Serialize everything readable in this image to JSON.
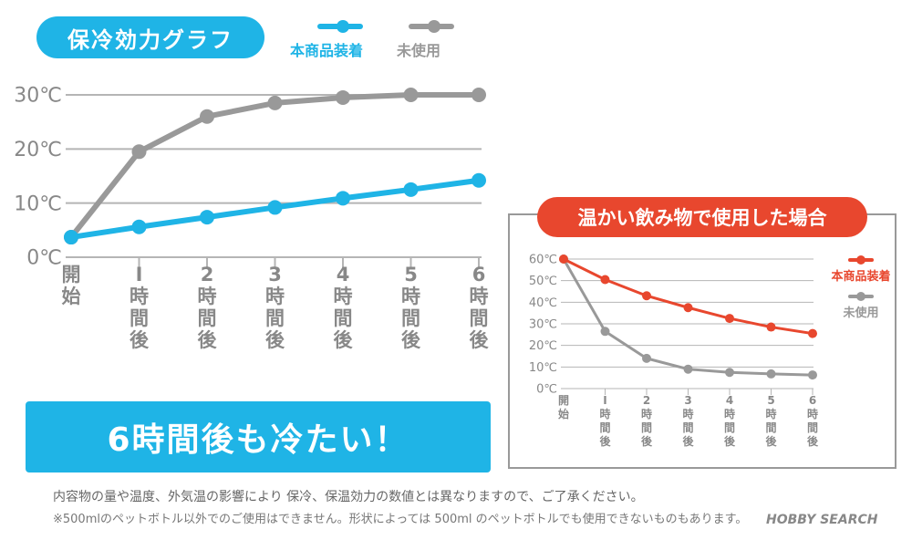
{
  "header": {
    "title": "保冷効力グラフ"
  },
  "legend_main": [
    {
      "label": "本商品装着",
      "color": "#1fb4e6"
    },
    {
      "label": "未使用",
      "color": "#999999"
    }
  ],
  "chart_data": [
    {
      "type": "line",
      "title": "保冷効力グラフ",
      "categories": [
        "開始",
        "1時間後",
        "2時間後",
        "3時間後",
        "4時間後",
        "5時間後",
        "6時間後"
      ],
      "category_labels": [
        [
          "開",
          "始"
        ],
        [
          "I",
          "時",
          "間",
          "後"
        ],
        [
          "2",
          "時",
          "間",
          "後"
        ],
        [
          "3",
          "時",
          "間",
          "後"
        ],
        [
          "4",
          "時",
          "間",
          "後"
        ],
        [
          "5",
          "時",
          "間",
          "後"
        ],
        [
          "6",
          "時",
          "間",
          "後"
        ]
      ],
      "y_ticks": [
        "0℃",
        "10℃",
        "20℃",
        "30℃"
      ],
      "ylim": [
        0,
        30
      ],
      "grid": true,
      "legend_position": "top",
      "series": [
        {
          "name": "本商品装着",
          "color": "#1fb4e6",
          "values": [
            3.7,
            5.6,
            7.4,
            9.2,
            10.9,
            12.5,
            14.2
          ]
        },
        {
          "name": "未使用",
          "color": "#999999",
          "values": [
            3.7,
            19.5,
            26.0,
            28.5,
            29.5,
            30.0,
            30.0
          ]
        }
      ]
    },
    {
      "type": "line",
      "title": "温かい飲み物で使用した場合",
      "categories": [
        "開始",
        "1時間後",
        "2時間後",
        "3時間後",
        "4時間後",
        "5時間後",
        "6時間後"
      ],
      "category_labels": [
        [
          "開",
          "始"
        ],
        [
          "I",
          "時",
          "間",
          "後"
        ],
        [
          "2",
          "時",
          "間",
          "後"
        ],
        [
          "3",
          "時",
          "間",
          "後"
        ],
        [
          "4",
          "時",
          "間",
          "後"
        ],
        [
          "5",
          "時",
          "間",
          "後"
        ],
        [
          "6",
          "時",
          "間",
          "後"
        ]
      ],
      "y_ticks": [
        "0℃",
        "10℃",
        "20℃",
        "30℃",
        "40℃",
        "50℃",
        "60℃"
      ],
      "ylim": [
        0,
        60
      ],
      "grid": true,
      "legend_position": "right",
      "series": [
        {
          "name": "本商品装着",
          "color": "#e8472e",
          "values": [
            60,
            50.5,
            43,
            37.5,
            32.5,
            28.5,
            25.5
          ]
        },
        {
          "name": "未使用",
          "color": "#999999",
          "values": [
            60,
            26.5,
            14,
            9,
            7.5,
            6.8,
            6.3
          ]
        }
      ]
    }
  ],
  "banner": {
    "text": "6時間後も冷たい！"
  },
  "inset": {
    "title": "温かい飲み物で使用した場合"
  },
  "notes": {
    "line1": "内容物の量や温度、外気温の影響により 保冷、保温効力の数値とは異なりますので、ご了承ください。",
    "line2": "※500mlのペットボトル以外でのご使用はできません。形状によっては 500ml のペットボトルでも使用できないものもあります。"
  },
  "watermark": "HOBBY SEARCH"
}
